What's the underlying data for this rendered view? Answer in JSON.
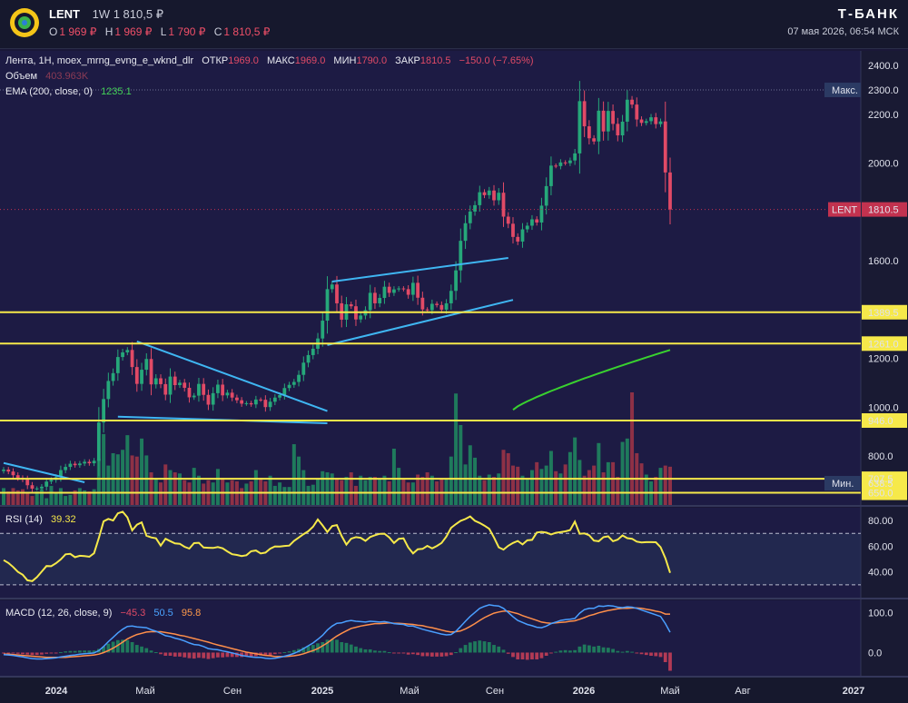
{
  "header": {
    "symbol": "LENT",
    "timeframe": "1W",
    "last_price": "1 810,5 ₽",
    "ohlc": [
      {
        "k": "O",
        "v": "1 969 ₽"
      },
      {
        "k": "H",
        "v": "1 969 ₽"
      },
      {
        "k": "L",
        "v": "1 790 ₽"
      },
      {
        "k": "C",
        "v": "1 810,5 ₽"
      }
    ],
    "brand": "Т-БАНК",
    "datetime": "07 мая 2026, 06:54 МСК"
  },
  "legend": {
    "instrument": "Лента, 1Н, moex_mrng_evng_e_wknd_dlr",
    "open_label": "ОТКР",
    "open": "1969.0",
    "high_label": "МАКС",
    "high": "1969.0",
    "low_label": "МИН",
    "low": "1790.0",
    "close_label": "ЗАКР",
    "close": "1810.5",
    "change": "−150.0 (−7.65%)",
    "volume_label": "Объем",
    "volume": "403.963K",
    "ema_label": "EMA (200, close, 0)",
    "ema": "1235.1",
    "rsi_label": "RSI (14)",
    "rsi": "39.32",
    "macd_label": "MACD (12, 26, close, 9)",
    "macd_hist": "−45.3",
    "macd_line": "50.5",
    "macd_signal": "95.8"
  },
  "colors": {
    "up": "#26a87a",
    "down": "#e14a66",
    "level": "#f6e94a",
    "trend": "#3fb6f2",
    "ema": "#39d12f",
    "rsi": "#f6e94a",
    "macd": "#4a9fff",
    "signal": "#ff8f4a"
  },
  "chart_data": [
    {
      "type": "candlestick",
      "title": "LENT 1W",
      "price_ticks": [
        2400,
        2200,
        2000,
        1800,
        1600,
        1200,
        1000,
        800
      ],
      "price_range": [
        600,
        2460
      ],
      "x_labels": [
        "2024",
        "Май",
        "Сен",
        "2025",
        "Май",
        "Сен",
        "2026",
        "Май",
        "Авг",
        "2027"
      ],
      "levels": [
        1389.5,
        1261.0,
        946.0,
        707.5,
        650.0
      ],
      "level_labels": [
        "1389.5",
        "1261.0",
        "946.0",
        "707.5",
        "650.0"
      ],
      "max_label": "Макс.",
      "max_value": "2300.0",
      "min_label": "Мин.",
      "min_value": "638.5",
      "last_label": "LENT",
      "last_value": "1810.5",
      "close": [
        745,
        737,
        722,
        711,
        704,
        681,
        667,
        668,
        675,
        696,
        703,
        714,
        743,
        756,
        769,
        763,
        770,
        777,
        771,
        781,
        938,
        1034,
        1108,
        1140,
        1206,
        1225,
        1235,
        1165,
        1096,
        1154,
        1198,
        1094,
        1119,
        1095,
        1052,
        1126,
        1091,
        1101,
        1080,
        1041,
        1048,
        1096,
        1051,
        1011,
        1058,
        1093,
        1049,
        1060,
        1040,
        1029,
        1015,
        1017,
        1012,
        1032,
        1031,
        1001,
        1023,
        1040,
        1050,
        1079,
        1092,
        1104,
        1133,
        1183,
        1214,
        1240,
        1282,
        1355,
        1484,
        1503,
        1426,
        1359,
        1422,
        1414,
        1360,
        1376,
        1398,
        1469,
        1426,
        1448,
        1494,
        1469,
        1483,
        1487,
        1484,
        1461,
        1510,
        1449,
        1401,
        1398,
        1424,
        1419,
        1400,
        1426,
        1477,
        1561,
        1682,
        1754,
        1802,
        1828,
        1881,
        1869,
        1888,
        1848,
        1879,
        1781,
        1752,
        1698,
        1679,
        1729,
        1744,
        1770,
        1757,
        1826,
        1906,
        1990,
        1988,
        2003,
        2000,
        2011,
        2040,
        2254,
        2151,
        2102,
        2089,
        2215,
        2130,
        2214,
        2161,
        2114,
        2170,
        2260,
        2240,
        2179,
        2165,
        2172,
        2188,
        2160,
        2171,
        1962,
        1810.5
      ],
      "volume_max": "relative",
      "volume": [
        0.15,
        0.12,
        0.15,
        0.13,
        0.14,
        0.11,
        0.08,
        0.12,
        0.14,
        0.06,
        0.17,
        0.11,
        0.15,
        0.08,
        0.09,
        0.13,
        0.15,
        0.13,
        0.12,
        0.14,
        0.41,
        0.63,
        0.35,
        0.46,
        0.45,
        0.49,
        0.62,
        0.44,
        0.43,
        0.59,
        0.44,
        0.29,
        0.23,
        0.2,
        0.36,
        0.31,
        0.29,
        0.28,
        0.22,
        0.2,
        0.33,
        0.26,
        0.19,
        0.22,
        0.2,
        0.32,
        0.24,
        0.2,
        0.22,
        0.21,
        0.15,
        0.19,
        0.21,
        0.31,
        0.24,
        0.21,
        0.26,
        0.17,
        0.2,
        0.16,
        0.16,
        0.54,
        0.43,
        0.31,
        0.17,
        0.18,
        0.23,
        0.3,
        0.29,
        0.28,
        0.24,
        0.22,
        0.25,
        0.29,
        0.17,
        0.26,
        0.22,
        0.25,
        0.25,
        0.23,
        0.26,
        0.21,
        0.5,
        0.33,
        0.23,
        0.2,
        0.2,
        0.27,
        0.25,
        0.29,
        0.26,
        0.21,
        0.23,
        0.23,
        0.43,
        0.99,
        0.71,
        0.36,
        0.53,
        0.42,
        0.26,
        0.22,
        0.27,
        0.25,
        0.28,
        0.49,
        0.46,
        0.35,
        0.34,
        0.26,
        0.23,
        0.31,
        0.38,
        0.32,
        0.35,
        0.48,
        0.3,
        0.28,
        0.36,
        0.47,
        0.6,
        0.4,
        0.26,
        0.31,
        0.35,
        0.55,
        0.29,
        0.38,
        0.38,
        0.25,
        0.56,
        0.59,
        1.0,
        0.46,
        0.37,
        0.27,
        0.21,
        0.25,
        0.33,
        0.35,
        0.34
      ]
    },
    {
      "type": "line",
      "title": "RSI (14)",
      "y_ticks": [
        80.0,
        60.0,
        40.0
      ],
      "ylim": [
        20,
        90
      ],
      "bands": [
        70,
        30
      ],
      "values": [
        49.2,
        47.0,
        43.8,
        40.1,
        37.8,
        33.5,
        32.9,
        36.0,
        40.2,
        44.6,
        44.5,
        46.8,
        49.8,
        53.7,
        54.1,
        51.5,
        52.6,
        52.3,
        51.8,
        54.6,
        66.5,
        79.4,
        81.3,
        80.0,
        85.6,
        86.9,
        82.5,
        72.4,
        76.8,
        78.6,
        68.2,
        66.9,
        66.2,
        60.5,
        65.8,
        64.0,
        62.2,
        61.9,
        59.6,
        58.2,
        62.4,
        62.7,
        59.0,
        58.8,
        58.7,
        59.4,
        58.4,
        56.0,
        53.8,
        53.2,
        52.4,
        53.0,
        56.1,
        56.7,
        54.4,
        55.1,
        58.1,
        59.9,
        59.8,
        60.2,
        60.5,
        64.2,
        66.8,
        69.4,
        71.7,
        75.2,
        80.9,
        76.2,
        71.1,
        75.7,
        76.5,
        68.1,
        61.3,
        65.9,
        67.1,
        66.6,
        64.2,
        67.2,
        68.6,
        69.7,
        69.8,
        66.9,
        62.6,
        65.8,
        66.2,
        59.1,
        54.4,
        57.7,
        58.0,
        60.3,
        58.3,
        60.2,
        62.6,
        67.6,
        74.4,
        77.3,
        79.8,
        81.2,
        83.2,
        79.8,
        78.1,
        76.1,
        73.6,
        66.9,
        59.2,
        57.4,
        60.4,
        62.6,
        64.1,
        61.4,
        64.6,
        65.0,
        70.7,
        71.2,
        70.6,
        69.2,
        70.5,
        71.0,
        71.6,
        72.6,
        79.2,
        69.7,
        70.0,
        68.6,
        64.4,
        63.9,
        67.1,
        67.7,
        63.9,
        65.2,
        68.4,
        66.3,
        65.8,
        63.6,
        63.0,
        63.2,
        63.2,
        63.1,
        59.3,
        50.7,
        39.3
      ]
    },
    {
      "type": "macd",
      "title": "MACD (12, 26, close, 9)",
      "y_ticks": [
        100.0,
        0.0
      ],
      "ylim": [
        -60,
        130
      ],
      "macd": [
        -5,
        -6,
        -7,
        -9,
        -11,
        -13,
        -15,
        -16,
        -16,
        -15,
        -14,
        -13,
        -11,
        -9,
        -7,
        -6,
        -4,
        -3,
        -2,
        -1,
        5,
        15,
        27,
        38,
        49,
        58,
        65,
        66,
        64,
        63,
        62,
        57,
        53,
        48,
        42,
        40,
        36,
        33,
        29,
        24,
        20,
        19,
        15,
        10,
        8,
        7,
        4,
        2,
        -1,
        -4,
        -7,
        -9,
        -11,
        -12,
        -12,
        -14,
        -15,
        -14,
        -12,
        -9,
        -6,
        -2,
        3,
        10,
        17,
        24,
        33,
        43,
        56,
        66,
        73,
        74,
        78,
        80,
        78,
        77,
        76,
        78,
        77,
        76,
        77,
        75,
        72,
        71,
        70,
        66,
        66,
        62,
        58,
        55,
        52,
        49,
        46,
        44,
        45,
        53,
        65,
        78,
        90,
        100,
        110,
        115,
        119,
        117,
        116,
        110,
        100,
        89,
        80,
        75,
        70,
        67,
        63,
        62,
        66,
        72,
        76,
        80,
        82,
        83,
        85,
        98,
        107,
        110,
        110,
        116,
        115,
        117,
        116,
        113,
        112,
        114,
        113,
        110,
        106,
        102,
        98,
        94,
        90,
        72,
        50.5
      ],
      "signal": [
        -4,
        -4,
        -5,
        -6,
        -7,
        -8,
        -9,
        -10,
        -11,
        -12,
        -12,
        -12,
        -12,
        -12,
        -11,
        -10,
        -9,
        -8,
        -7,
        -6,
        -4,
        0,
        5,
        11,
        18,
        26,
        34,
        40,
        45,
        48,
        51,
        52,
        52,
        52,
        50,
        48,
        46,
        43,
        41,
        38,
        35,
        32,
        29,
        26,
        22,
        19,
        16,
        13,
        10,
        7,
        4,
        1,
        -1,
        -3,
        -5,
        -7,
        -8,
        -10,
        -10,
        -10,
        -9,
        -8,
        -6,
        -3,
        1,
        5,
        10,
        17,
        24,
        33,
        41,
        48,
        54,
        60,
        63,
        66,
        68,
        70,
        72,
        72,
        73,
        74,
        73,
        73,
        72,
        71,
        70,
        68,
        67,
        64,
        62,
        59,
        56,
        53,
        51,
        52,
        54,
        59,
        65,
        72,
        80,
        87,
        93,
        98,
        101,
        103,
        103,
        100,
        97,
        92,
        88,
        84,
        80,
        76,
        74,
        73,
        74,
        75,
        76,
        78,
        79,
        83,
        87,
        92,
        95,
        99,
        102,
        105,
        107,
        109,
        110,
        110,
        111,
        111,
        110,
        108,
        106,
        103,
        101,
        95.8,
        95.8
      ]
    }
  ]
}
